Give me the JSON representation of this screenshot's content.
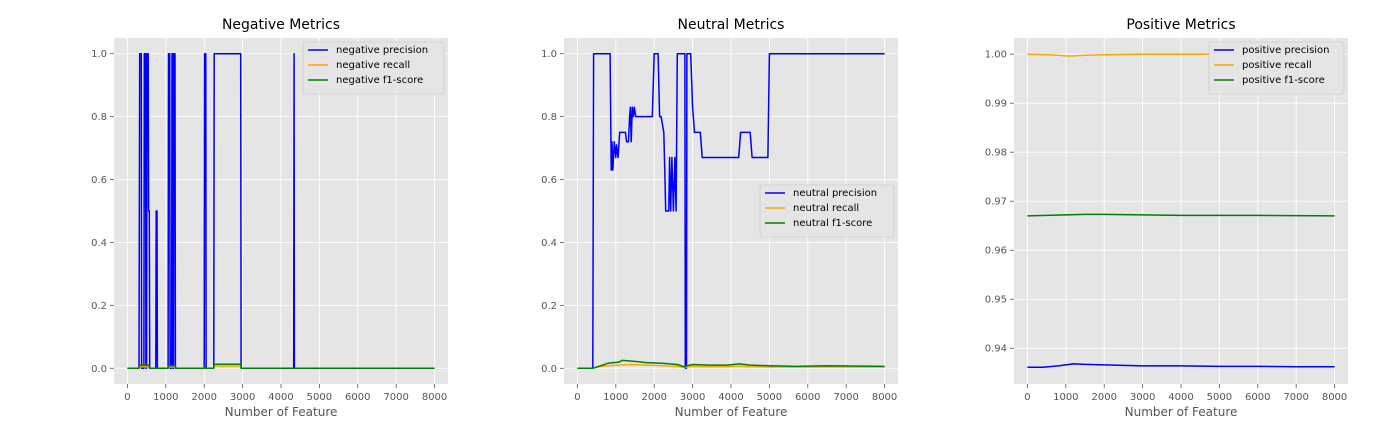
{
  "chart_data": [
    {
      "type": "line",
      "title": "Negative Metrics",
      "xlabel": "Number of Feature",
      "ylabel": "",
      "xlim": [
        -350,
        8350
      ],
      "ylim": [
        -0.05,
        1.05
      ],
      "xticks": [
        0,
        1000,
        2000,
        3000,
        4000,
        5000,
        6000,
        7000,
        8000
      ],
      "yticks": [
        0.0,
        0.2,
        0.4,
        0.6,
        0.8,
        1.0
      ],
      "ytick_decimals": 1,
      "grid": true,
      "legend_position": "top-right",
      "series": [
        {
          "name": "negative precision",
          "color": "#0000ff",
          "points": [
            [
              0,
              0
            ],
            [
              300,
              0
            ],
            [
              320,
              1
            ],
            [
              360,
              1
            ],
            [
              370,
              0
            ],
            [
              430,
              0
            ],
            [
              440,
              1
            ],
            [
              470,
              1
            ],
            [
              480,
              0
            ],
            [
              500,
              0
            ],
            [
              510,
              1
            ],
            [
              540,
              1
            ],
            [
              550,
              0.5
            ],
            [
              570,
              0.5
            ],
            [
              580,
              0
            ],
            [
              740,
              0
            ],
            [
              750,
              0.5
            ],
            [
              770,
              0.5
            ],
            [
              780,
              0
            ],
            [
              1060,
              0
            ],
            [
              1070,
              1
            ],
            [
              1100,
              1
            ],
            [
              1110,
              0
            ],
            [
              1150,
              0
            ],
            [
              1160,
              1
            ],
            [
              1180,
              1
            ],
            [
              1190,
              0
            ],
            [
              1200,
              0
            ],
            [
              1210,
              1
            ],
            [
              1240,
              1
            ],
            [
              1250,
              0
            ],
            [
              2000,
              0
            ],
            [
              2010,
              1
            ],
            [
              2040,
              1
            ],
            [
              2050,
              0
            ],
            [
              2250,
              0
            ],
            [
              2260,
              1
            ],
            [
              2950,
              1
            ],
            [
              2960,
              0
            ],
            [
              4330,
              0
            ],
            [
              4340,
              1
            ],
            [
              4350,
              0
            ],
            [
              8000,
              0
            ]
          ]
        },
        {
          "name": "negative recall",
          "color": "#ffa500",
          "points": [
            [
              0,
              0
            ],
            [
              300,
              0
            ],
            [
              320,
              0.005
            ],
            [
              560,
              0.005
            ],
            [
              580,
              0
            ],
            [
              1060,
              0
            ],
            [
              1070,
              0.004
            ],
            [
              1250,
              0.004
            ],
            [
              1260,
              0
            ],
            [
              2250,
              0
            ],
            [
              2260,
              0.007
            ],
            [
              2950,
              0.007
            ],
            [
              2960,
              0
            ],
            [
              8000,
              0
            ]
          ]
        },
        {
          "name": "negative f1-score",
          "color": "#008000",
          "points": [
            [
              0,
              0
            ],
            [
              300,
              0
            ],
            [
              320,
              0.01
            ],
            [
              560,
              0.01
            ],
            [
              580,
              0
            ],
            [
              1060,
              0
            ],
            [
              1070,
              0.008
            ],
            [
              1250,
              0.008
            ],
            [
              1260,
              0
            ],
            [
              2000,
              0
            ],
            [
              2010,
              0.006
            ],
            [
              2050,
              0
            ],
            [
              2250,
              0
            ],
            [
              2260,
              0.013
            ],
            [
              2950,
              0.013
            ],
            [
              2960,
              0
            ],
            [
              8000,
              0
            ]
          ]
        }
      ]
    },
    {
      "type": "line",
      "title": "Neutral Metrics",
      "xlabel": "Number of Feature",
      "ylabel": "",
      "xlim": [
        -350,
        8350
      ],
      "ylim": [
        -0.05,
        1.05
      ],
      "xticks": [
        0,
        1000,
        2000,
        3000,
        4000,
        5000,
        6000,
        7000,
        8000
      ],
      "yticks": [
        0.0,
        0.2,
        0.4,
        0.6,
        0.8,
        1.0
      ],
      "ytick_decimals": 1,
      "grid": true,
      "legend_position": "center-right",
      "series": [
        {
          "name": "neutral precision",
          "color": "#0000ff",
          "points": [
            [
              0,
              0
            ],
            [
              400,
              0
            ],
            [
              420,
              1
            ],
            [
              850,
              1
            ],
            [
              880,
              0.63
            ],
            [
              900,
              0.72
            ],
            [
              920,
              0.63
            ],
            [
              960,
              0.72
            ],
            [
              1000,
              0.67
            ],
            [
              1020,
              0.71
            ],
            [
              1060,
              0.67
            ],
            [
              1100,
              0.75
            ],
            [
              1250,
              0.75
            ],
            [
              1280,
              0.72
            ],
            [
              1330,
              0.72
            ],
            [
              1360,
              0.8
            ],
            [
              1380,
              0.83
            ],
            [
              1400,
              0.72
            ],
            [
              1430,
              0.83
            ],
            [
              1460,
              0.8
            ],
            [
              1480,
              0.83
            ],
            [
              1520,
              0.8
            ],
            [
              1950,
              0.8
            ],
            [
              2000,
              1
            ],
            [
              2100,
              1
            ],
            [
              2140,
              0.8
            ],
            [
              2180,
              0.8
            ],
            [
              2250,
              0.75
            ],
            [
              2280,
              0.6
            ],
            [
              2300,
              0.5
            ],
            [
              2380,
              0.5
            ],
            [
              2400,
              0.67
            ],
            [
              2430,
              0.5
            ],
            [
              2460,
              0.67
            ],
            [
              2500,
              0.5
            ],
            [
              2540,
              0.67
            ],
            [
              2570,
              0.5
            ],
            [
              2600,
              1
            ],
            [
              2800,
              1
            ],
            [
              2810,
              0
            ],
            [
              2840,
              0
            ],
            [
              2850,
              1
            ],
            [
              2950,
              1
            ],
            [
              3000,
              0.83
            ],
            [
              3050,
              0.75
            ],
            [
              3200,
              0.75
            ],
            [
              3250,
              0.67
            ],
            [
              4200,
              0.67
            ],
            [
              4250,
              0.75
            ],
            [
              4500,
              0.75
            ],
            [
              4550,
              0.67
            ],
            [
              4960,
              0.67
            ],
            [
              5000,
              1
            ],
            [
              8000,
              1
            ]
          ]
        },
        {
          "name": "neutral recall",
          "color": "#ffa500",
          "points": [
            [
              0,
              0
            ],
            [
              400,
              0
            ],
            [
              500,
              0.004
            ],
            [
              800,
              0.008
            ],
            [
              1100,
              0.01
            ],
            [
              1400,
              0.012
            ],
            [
              1800,
              0.01
            ],
            [
              2200,
              0.008
            ],
            [
              2600,
              0.006
            ],
            [
              2800,
              0.002
            ],
            [
              2850,
              0.004
            ],
            [
              3000,
              0.006
            ],
            [
              3400,
              0.005
            ],
            [
              3900,
              0.005
            ],
            [
              4200,
              0.007
            ],
            [
              4500,
              0.005
            ],
            [
              5000,
              0.004
            ],
            [
              6500,
              0.004
            ],
            [
              8000,
              0.004
            ]
          ]
        },
        {
          "name": "neutral f1-score",
          "color": "#008000",
          "points": [
            [
              0,
              0
            ],
            [
              400,
              0
            ],
            [
              600,
              0.008
            ],
            [
              800,
              0.016
            ],
            [
              1100,
              0.02
            ],
            [
              1150,
              0.025
            ],
            [
              1300,
              0.024
            ],
            [
              1500,
              0.022
            ],
            [
              1800,
              0.018
            ],
            [
              2200,
              0.016
            ],
            [
              2600,
              0.012
            ],
            [
              2800,
              0.004
            ],
            [
              2850,
              0.008
            ],
            [
              3000,
              0.012
            ],
            [
              3400,
              0.01
            ],
            [
              3900,
              0.01
            ],
            [
              4200,
              0.014
            ],
            [
              4500,
              0.01
            ],
            [
              5000,
              0.008
            ],
            [
              5700,
              0.006
            ],
            [
              6500,
              0.008
            ],
            [
              8000,
              0.006
            ]
          ]
        }
      ]
    },
    {
      "type": "line",
      "title": "Positive Metrics",
      "xlabel": "Number of Feature",
      "ylabel": "",
      "xlim": [
        -350,
        8350
      ],
      "ylim": [
        0.9327,
        1.0033
      ],
      "xticks": [
        0,
        1000,
        2000,
        3000,
        4000,
        5000,
        6000,
        7000,
        8000
      ],
      "yticks": [
        0.94,
        0.95,
        0.96,
        0.97,
        0.98,
        0.99,
        1.0
      ],
      "ytick_decimals": 2,
      "grid": true,
      "legend_position": "top-right",
      "series": [
        {
          "name": "positive precision",
          "color": "#0000ff",
          "points": [
            [
              0,
              0.9361
            ],
            [
              400,
              0.9361
            ],
            [
              800,
              0.9364
            ],
            [
              1000,
              0.9366
            ],
            [
              1200,
              0.9368
            ],
            [
              1500,
              0.9367
            ],
            [
              2000,
              0.9366
            ],
            [
              2500,
              0.9365
            ],
            [
              3000,
              0.9364
            ],
            [
              4000,
              0.9364
            ],
            [
              5000,
              0.9363
            ],
            [
              6000,
              0.9363
            ],
            [
              7000,
              0.9362
            ],
            [
              8000,
              0.9362
            ]
          ]
        },
        {
          "name": "positive recall",
          "color": "#ffa500",
          "points": [
            [
              0,
              1.0
            ],
            [
              600,
              0.9999
            ],
            [
              900,
              0.9997
            ],
            [
              1100,
              0.9996
            ],
            [
              1500,
              0.9998
            ],
            [
              2000,
              0.9999
            ],
            [
              3000,
              1.0
            ],
            [
              5000,
              1.0
            ],
            [
              8000,
              1.0
            ]
          ]
        },
        {
          "name": "positive f1-score",
          "color": "#008000",
          "points": [
            [
              0,
              0.967
            ],
            [
              500,
              0.9671
            ],
            [
              1000,
              0.9672
            ],
            [
              1500,
              0.9673
            ],
            [
              2000,
              0.9673
            ],
            [
              3000,
              0.9672
            ],
            [
              4000,
              0.9671
            ],
            [
              6000,
              0.9671
            ],
            [
              8000,
              0.967
            ]
          ]
        }
      ]
    }
  ]
}
